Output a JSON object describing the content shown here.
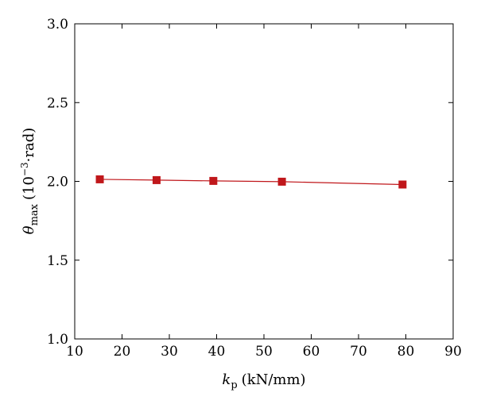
{
  "chart_data": {
    "type": "line",
    "xlabel": "k",
    "xlabel_sub": "p",
    "xlabel_unit": "(kN/mm)",
    "ylabel": "θ",
    "ylabel_sub": "max",
    "ylabel_unit_pre": "(10",
    "ylabel_unit_sup": "−3",
    "ylabel_unit_post": "·rad)",
    "xlim": [
      10,
      90
    ],
    "ylim": [
      1.0,
      3.0
    ],
    "xticks": [
      10,
      20,
      30,
      40,
      50,
      60,
      70,
      80,
      90
    ],
    "yticks": [
      1.0,
      1.5,
      2.0,
      2.5,
      3.0
    ],
    "xtick_labels": [
      "10",
      "20",
      "30",
      "40",
      "50",
      "60",
      "70",
      "80",
      "90"
    ],
    "ytick_labels": [
      "1.0",
      "1.5",
      "2.0",
      "2.5",
      "3.0"
    ],
    "grid": false,
    "series": [
      {
        "x": [
          15.3,
          27.3,
          39.3,
          53.8,
          79.3
        ],
        "y": [
          2.013,
          2.008,
          2.003,
          1.998,
          1.98
        ],
        "marker": "square",
        "color": "#c0171b"
      }
    ]
  }
}
